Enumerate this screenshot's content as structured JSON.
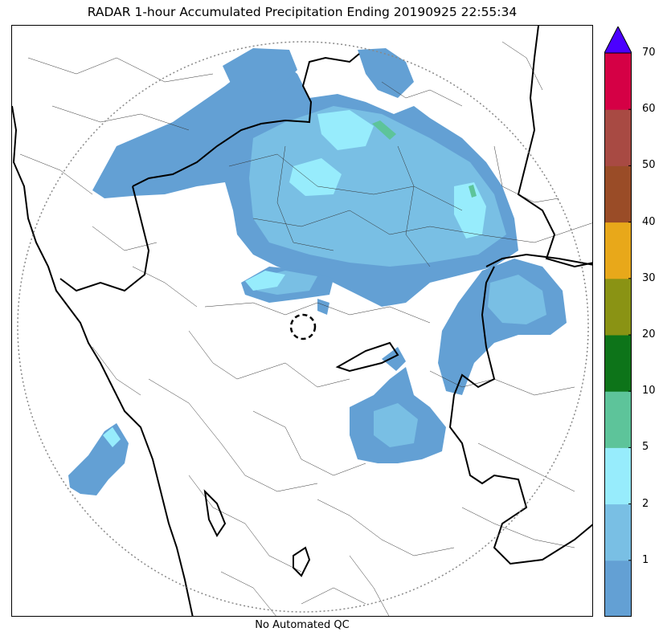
{
  "title": "RADAR 1-hour Accumulated Precipitation Ending 20190925 22:55:34",
  "footer": "No Automated QC",
  "map": {
    "layers": [
      "precipitation",
      "state-borders",
      "district-borders",
      "coastline",
      "radar-range-ring",
      "radar-site"
    ],
    "radar_site_marker": "dashed-circle",
    "range_ring_style": "dotted"
  },
  "colorbar": {
    "extend": "max",
    "overflow_color": "#4B00FF",
    "ticks": [
      "1",
      "2",
      "5",
      "10",
      "20",
      "30",
      "40",
      "50",
      "60",
      "70"
    ],
    "bins": [
      {
        "upper": 1,
        "color": "#63A0D4"
      },
      {
        "upper": 2,
        "color": "#79BFE4"
      },
      {
        "upper": 5,
        "color": "#97ECFC"
      },
      {
        "upper": 10,
        "color": "#5DC49A"
      },
      {
        "upper": 20,
        "color": "#0D7419"
      },
      {
        "upper": 30,
        "color": "#8A9314"
      },
      {
        "upper": 40,
        "color": "#E8A81A"
      },
      {
        "upper": 50,
        "color": "#9A4C27"
      },
      {
        "upper": 60,
        "color": "#A84A43"
      },
      {
        "upper": 70,
        "color": "#D50045"
      }
    ]
  }
}
